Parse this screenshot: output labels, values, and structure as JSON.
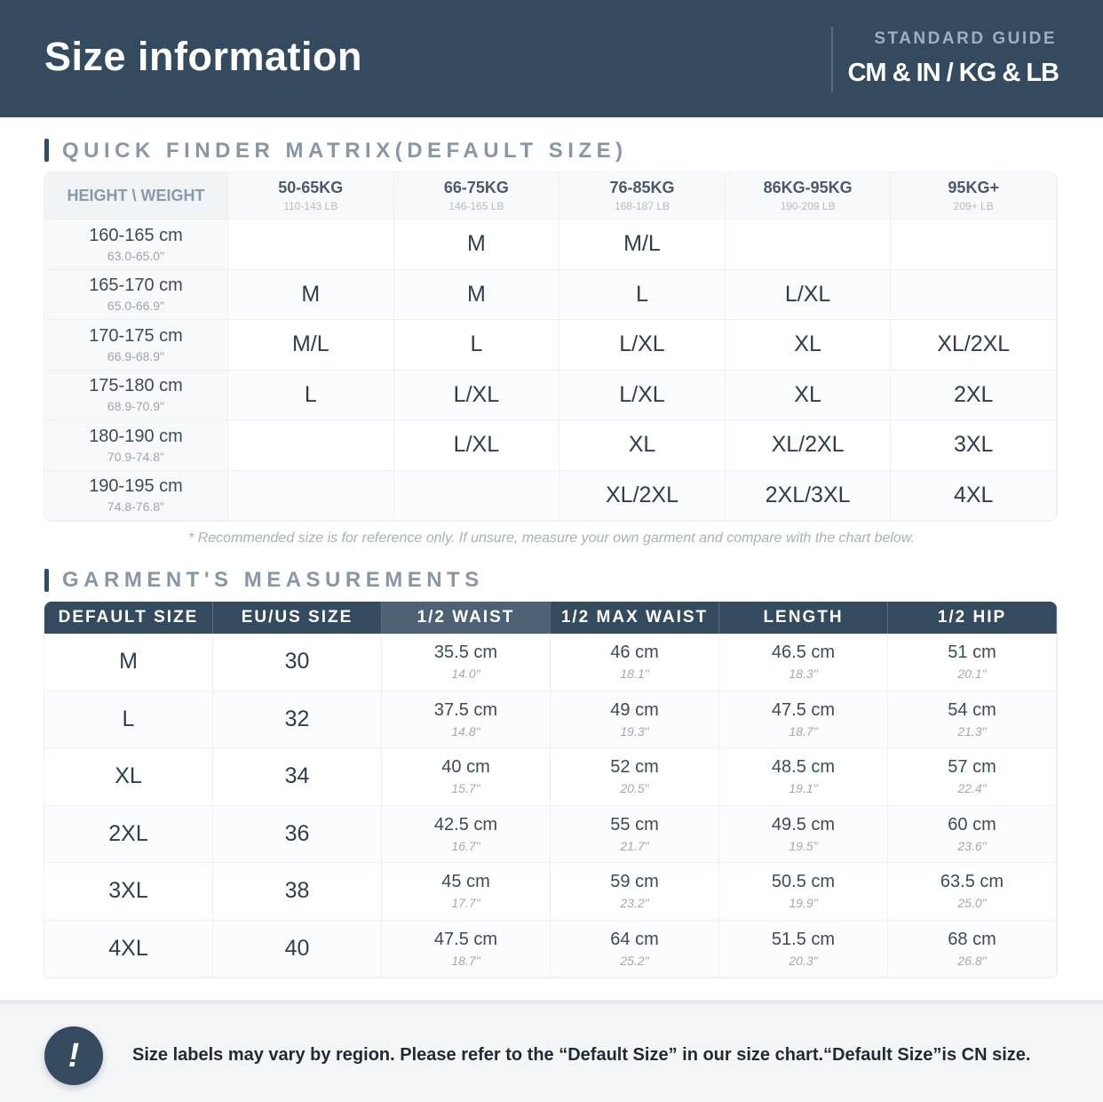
{
  "header": {
    "title": "Size information",
    "eyebrow": "STANDARD GUIDE",
    "units": "CM & IN / KG & LB"
  },
  "matrix": {
    "title": "QUICK FINDER MATRIX(DEFAULT SIZE)",
    "corner": "HEIGHT \\ WEIGHT",
    "columns": [
      {
        "kg": "50-65KG",
        "lb": "110-143 LB"
      },
      {
        "kg": "66-75KG",
        "lb": "146-165 LB"
      },
      {
        "kg": "76-85KG",
        "lb": "168-187 LB"
      },
      {
        "kg": "86KG-95KG",
        "lb": "190-209 LB"
      },
      {
        "kg": "95KG+",
        "lb": "209+ LB"
      }
    ],
    "rows": [
      {
        "cm": "160-165 cm",
        "in": "63.0-65.0\"",
        "sizes": [
          null,
          "M",
          "M/L",
          null,
          null
        ]
      },
      {
        "cm": "165-170 cm",
        "in": "65.0-66.9\"",
        "sizes": [
          "M",
          "M",
          "L",
          "L/XL",
          null
        ]
      },
      {
        "cm": "170-175 cm",
        "in": "66.9-68.9\"",
        "sizes": [
          "M/L",
          "L",
          "L/XL",
          "XL",
          "XL/2XL"
        ]
      },
      {
        "cm": "175-180 cm",
        "in": "68.9-70.9\"",
        "sizes": [
          "L",
          "L/XL",
          "L/XL",
          "XL",
          "2XL"
        ]
      },
      {
        "cm": "180-190 cm",
        "in": "70.9-74.8\"",
        "sizes": [
          null,
          "L/XL",
          "XL",
          "XL/2XL",
          "3XL"
        ]
      },
      {
        "cm": "190-195 cm",
        "in": "74.8-76.8\"",
        "sizes": [
          null,
          null,
          "XL/2XL",
          "2XL/3XL",
          "4XL"
        ]
      }
    ],
    "note": "* Recommended size is for reference only. If unsure, measure your own garment and compare with the chart below."
  },
  "measurements": {
    "title": "GARMENT'S MEASUREMENTS",
    "headers": [
      "DEFAULT SIZE",
      "EU/US SIZE",
      "1/2 WAIST",
      "1/2 MAX WAIST",
      "LENGTH",
      "1/2 HIP"
    ],
    "rows": [
      {
        "size": "M",
        "eu": "30",
        "cells": [
          {
            "cm": "35.5 cm",
            "in": "14.0\""
          },
          {
            "cm": "46 cm",
            "in": "18.1\""
          },
          {
            "cm": "46.5 cm",
            "in": "18.3\""
          },
          {
            "cm": "51 cm",
            "in": "20.1\""
          }
        ]
      },
      {
        "size": "L",
        "eu": "32",
        "cells": [
          {
            "cm": "37.5 cm",
            "in": "14.8\""
          },
          {
            "cm": "49 cm",
            "in": "19.3\""
          },
          {
            "cm": "47.5 cm",
            "in": "18.7\""
          },
          {
            "cm": "54 cm",
            "in": "21.3\""
          }
        ]
      },
      {
        "size": "XL",
        "eu": "34",
        "cells": [
          {
            "cm": "40 cm",
            "in": "15.7\""
          },
          {
            "cm": "52 cm",
            "in": "20.5\""
          },
          {
            "cm": "48.5 cm",
            "in": "19.1\""
          },
          {
            "cm": "57 cm",
            "in": "22.4\""
          }
        ]
      },
      {
        "size": "2XL",
        "eu": "36",
        "cells": [
          {
            "cm": "42.5 cm",
            "in": "16.7\""
          },
          {
            "cm": "55 cm",
            "in": "21.7\""
          },
          {
            "cm": "49.5 cm",
            "in": "19.5\""
          },
          {
            "cm": "60 cm",
            "in": "23.6\""
          }
        ]
      },
      {
        "size": "3XL",
        "eu": "38",
        "cells": [
          {
            "cm": "45 cm",
            "in": "17.7\""
          },
          {
            "cm": "59 cm",
            "in": "23.2\""
          },
          {
            "cm": "50.5 cm",
            "in": "19.9\""
          },
          {
            "cm": "63.5 cm",
            "in": "25.0\""
          }
        ]
      },
      {
        "size": "4XL",
        "eu": "40",
        "cells": [
          {
            "cm": "47.5 cm",
            "in": "18.7\""
          },
          {
            "cm": "64 cm",
            "in": "25.2\""
          },
          {
            "cm": "51.5 cm",
            "in": "20.3\""
          },
          {
            "cm": "68 cm",
            "in": "26.8\""
          }
        ]
      }
    ]
  },
  "footer": {
    "icon": "!",
    "text": "Size labels may vary by region. Please refer to the “Default Size” in our size chart.“Default Size”is CN size."
  }
}
